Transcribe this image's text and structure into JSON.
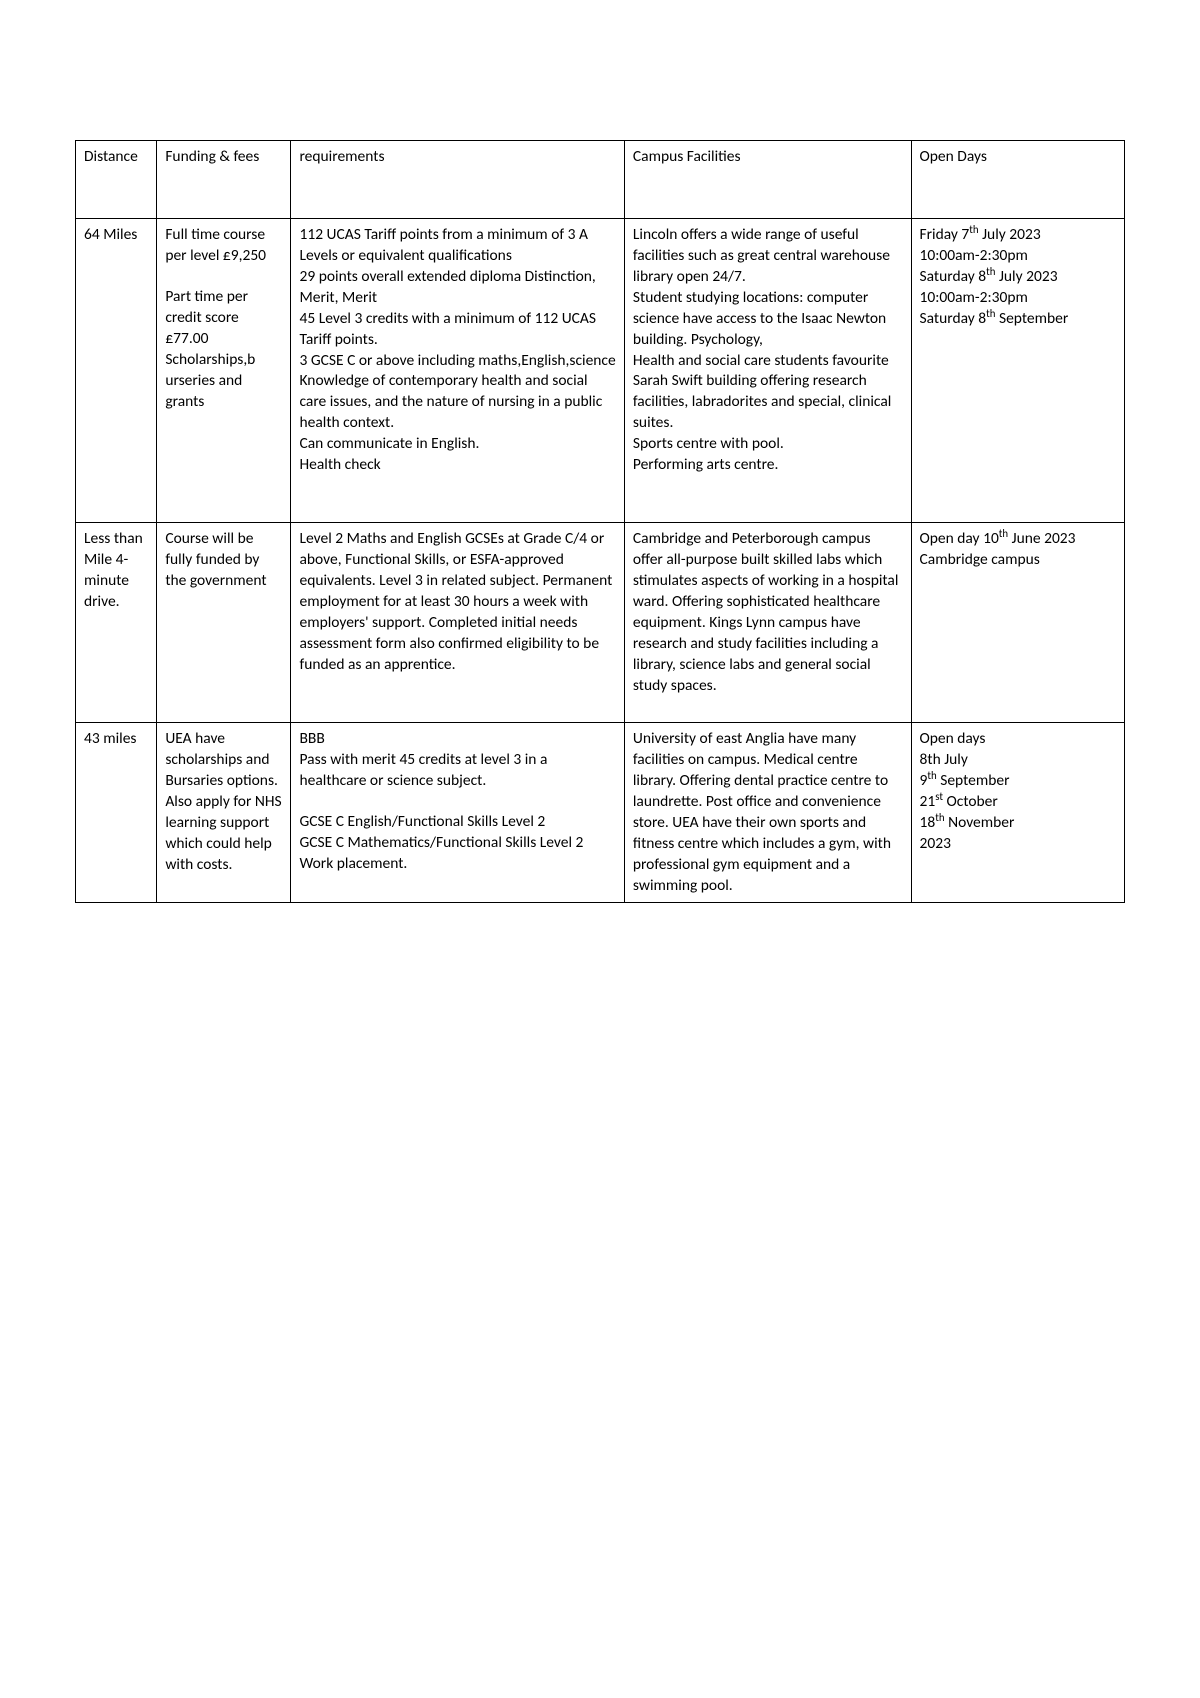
{
  "columns": {
    "c1": "Distance",
    "c2": "Funding & fees",
    "c3": "requirements",
    "c4": "Campus Facilities",
    "c5": "Open Days"
  },
  "rows": [
    {
      "distance": "64 Miles",
      "funding_line1": "Full time course per level £9,250",
      "funding_line2": "Part time per credit score £77.00",
      "funding_line3": "Scholarships,b urseries and grants",
      "req_l1": "112 UCAS Tariff points from a minimum of 3 A Levels or equivalent qualifications",
      "req_l2": "29 points overall extended diploma Distinction, Merit, Merit",
      "req_l3": "45 Level 3 credits with a minimum of 112 UCAS Tariff points.",
      "req_l4": "3 GCSE C or above including maths,English,science",
      "req_l5": "Knowledge of contemporary health and social care issues, and the nature of nursing in a public health context.",
      "req_l6": "Can communicate in English.",
      "req_l7": "Health check",
      "fac_l1": "Lincoln offers a wide range of useful facilities such as great central warehouse library open 24/7.",
      "fac_l2": "Student studying locations: computer science have access to the Isaac Newton building. Psychology,",
      "fac_l3": "Health and social care students favourite Sarah Swift building offering research facilities, labradorites and special, clinical suites.",
      "fac_l4": "Sports centre with pool.",
      "fac_l5": "Performing arts centre.",
      "open_l1a": "Friday 7",
      "open_l1b": " July 2023",
      "open_l2": "10:00am-2:30pm",
      "open_l3a": "Saturday 8",
      "open_l3b": " July 2023",
      "open_l4": "10:00am-2:30pm",
      "open_l5a": "Saturday 8",
      "open_l5b": " September",
      "sup_th": "th"
    },
    {
      "distance": "Less than Mile 4-minute drive.",
      "funding": "Course will be fully funded by the government",
      "requirements": "Level 2 Maths and English GCSEs at Grade C/4 or above, Functional Skills, or ESFA-approved equivalents. Level 3 in related subject. Permanent employment for at least 30 hours a week with employers' support. Completed initial needs assessment form also confirmed eligibility to be funded as an apprentice.",
      "facilities": "Cambridge and Peterborough campus offer all-purpose built skilled labs which stimulates aspects of working in a hospital ward. Offering sophisticated healthcare equipment. Kings Lynn campus have research and study facilities including a library, science labs and general social study spaces.",
      "open_l1a": "Open day 10",
      "open_l1b": " June 2023",
      "open_l2": "Cambridge campus",
      "sup_th": "th"
    },
    {
      "distance": "43 miles",
      "funding": "UEA have scholarships and Bursaries options. Also apply for NHS learning support which could help with costs.",
      "req_l1": "BBB",
      "req_l2": "Pass with merit 45 credits at level 3 in a healthcare or science subject.",
      "req_l3": "GCSE C English/Functional Skills Level 2",
      "req_l4": "GCSE C Mathematics/Functional Skills Level 2",
      "req_l5": "Work placement.",
      "facilities": "University of east Anglia have many facilities on campus. Medical centre library. Offering dental practice centre to laundrette. Post office and convenience store. UEA have their own sports and fitness centre which includes a gym, with professional gym equipment and a swimming pool.",
      "open_l1": "Open days",
      "open_l2": "8th July",
      "open_l3a": "9",
      "open_l3b": " September",
      "open_l4a": "21",
      "open_l4b": " October",
      "open_l5a": "18",
      "open_l5b": " November",
      "open_l6": "2023",
      "sup_th": "th",
      "sup_st": "st"
    }
  ]
}
